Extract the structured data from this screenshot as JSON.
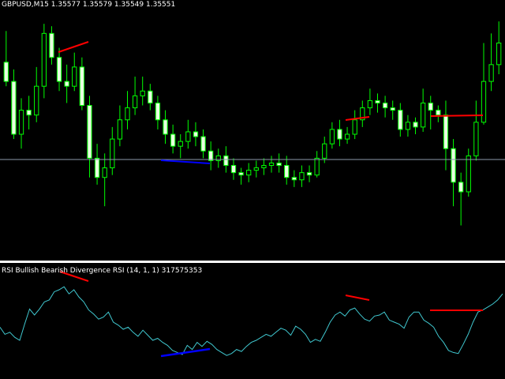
{
  "main_window": {
    "symbol": "GBPUSD,M15",
    "ohlc": "1.35577 1.35579 1.35549 1.35551",
    "colors": {
      "background": "#000000",
      "bull": "#00ff00",
      "bear": "#e8ffe0",
      "level": "#8c9aaa",
      "bearish_divergence": "#ff0000",
      "bullish_divergence": "#0000ff"
    }
  },
  "indicator_window": {
    "title": "RSI Bullish Bearish Divergence RSI (14, 1, 1) 317575353",
    "line_color": "#40c8d0"
  },
  "chart_data": [
    {
      "type": "candlestick",
      "range_y": [
        0,
        1
      ],
      "candles": [
        [
          0.8,
          0.72,
          0.7,
          0.93
        ],
        [
          0.72,
          0.5,
          0.48,
          0.77
        ],
        [
          0.5,
          0.6,
          0.44,
          0.65
        ],
        [
          0.6,
          0.58,
          0.52,
          0.66
        ],
        [
          0.58,
          0.7,
          0.55,
          0.78
        ],
        [
          0.7,
          0.92,
          0.65,
          0.96
        ],
        [
          0.92,
          0.82,
          0.79,
          0.95
        ],
        [
          0.82,
          0.72,
          0.68,
          0.86
        ],
        [
          0.72,
          0.7,
          0.63,
          0.79
        ],
        [
          0.7,
          0.78,
          0.68,
          0.84
        ],
        [
          0.78,
          0.62,
          0.6,
          0.82
        ],
        [
          0.62,
          0.4,
          0.32,
          0.66
        ],
        [
          0.4,
          0.32,
          0.29,
          0.46
        ],
        [
          0.32,
          0.36,
          0.2,
          0.42
        ],
        [
          0.36,
          0.48,
          0.33,
          0.53
        ],
        [
          0.48,
          0.56,
          0.45,
          0.62
        ],
        [
          0.56,
          0.61,
          0.52,
          0.68
        ],
        [
          0.61,
          0.66,
          0.58,
          0.74
        ],
        [
          0.66,
          0.68,
          0.62,
          0.74
        ],
        [
          0.68,
          0.63,
          0.6,
          0.71
        ],
        [
          0.63,
          0.56,
          0.52,
          0.66
        ],
        [
          0.56,
          0.5,
          0.46,
          0.6
        ],
        [
          0.5,
          0.45,
          0.42,
          0.54
        ],
        [
          0.45,
          0.47,
          0.4,
          0.5
        ],
        [
          0.47,
          0.51,
          0.44,
          0.56
        ],
        [
          0.51,
          0.49,
          0.45,
          0.55
        ],
        [
          0.49,
          0.43,
          0.4,
          0.52
        ],
        [
          0.43,
          0.39,
          0.35,
          0.47
        ],
        [
          0.39,
          0.41,
          0.36,
          0.44
        ],
        [
          0.41,
          0.37,
          0.34,
          0.45
        ],
        [
          0.37,
          0.34,
          0.31,
          0.4
        ],
        [
          0.34,
          0.33,
          0.29,
          0.36
        ],
        [
          0.33,
          0.35,
          0.3,
          0.38
        ],
        [
          0.35,
          0.36,
          0.32,
          0.39
        ],
        [
          0.36,
          0.37,
          0.33,
          0.4
        ],
        [
          0.37,
          0.38,
          0.34,
          0.41
        ],
        [
          0.38,
          0.37,
          0.34,
          0.42
        ],
        [
          0.37,
          0.32,
          0.29,
          0.41
        ],
        [
          0.32,
          0.31,
          0.28,
          0.35
        ],
        [
          0.31,
          0.34,
          0.28,
          0.37
        ],
        [
          0.34,
          0.33,
          0.3,
          0.37
        ],
        [
          0.33,
          0.4,
          0.32,
          0.43
        ],
        [
          0.4,
          0.46,
          0.38,
          0.49
        ],
        [
          0.46,
          0.52,
          0.44,
          0.55
        ],
        [
          0.52,
          0.48,
          0.45,
          0.56
        ],
        [
          0.48,
          0.5,
          0.46,
          0.53
        ],
        [
          0.5,
          0.56,
          0.48,
          0.6
        ],
        [
          0.56,
          0.61,
          0.53,
          0.64
        ],
        [
          0.61,
          0.64,
          0.58,
          0.69
        ],
        [
          0.64,
          0.63,
          0.59,
          0.67
        ],
        [
          0.63,
          0.61,
          0.57,
          0.66
        ],
        [
          0.61,
          0.6,
          0.56,
          0.64
        ],
        [
          0.6,
          0.52,
          0.49,
          0.63
        ],
        [
          0.52,
          0.55,
          0.49,
          0.58
        ],
        [
          0.55,
          0.53,
          0.5,
          0.57
        ],
        [
          0.53,
          0.63,
          0.51,
          0.69
        ],
        [
          0.63,
          0.6,
          0.52,
          0.66
        ],
        [
          0.6,
          0.58,
          0.55,
          0.62
        ],
        [
          0.58,
          0.44,
          0.35,
          0.64
        ],
        [
          0.44,
          0.3,
          0.2,
          0.48
        ],
        [
          0.3,
          0.26,
          0.12,
          0.34
        ],
        [
          0.26,
          0.41,
          0.24,
          0.44
        ],
        [
          0.41,
          0.55,
          0.39,
          0.64
        ],
        [
          0.55,
          0.72,
          0.54,
          0.88
        ],
        [
          0.72,
          0.79,
          0.68,
          0.92
        ],
        [
          0.79,
          0.88,
          0.75,
          0.97
        ]
      ]
    },
    {
      "type": "line",
      "name": "RSI",
      "range_y": [
        0,
        100
      ],
      "values": [
        45,
        38,
        40,
        35,
        32,
        48,
        63,
        57,
        63,
        70,
        72,
        80,
        82,
        85,
        78,
        82,
        75,
        70,
        62,
        58,
        53,
        55,
        60,
        50,
        47,
        43,
        45,
        40,
        36,
        42,
        37,
        32,
        34,
        30,
        27,
        22,
        20,
        18,
        27,
        23,
        30,
        26,
        31,
        28,
        23,
        20,
        17,
        19,
        23,
        21,
        26,
        30,
        32,
        35,
        38,
        36,
        40,
        44,
        42,
        37,
        46,
        43,
        38,
        30,
        33,
        31,
        40,
        50,
        57,
        60,
        56,
        62,
        64,
        58,
        53,
        51,
        56,
        57,
        60,
        52,
        50,
        48,
        44,
        55,
        60,
        60,
        52,
        49,
        45,
        36,
        30,
        22,
        20,
        19,
        28,
        38,
        50,
        60,
        62,
        65,
        68,
        72,
        78
      ]
    }
  ]
}
